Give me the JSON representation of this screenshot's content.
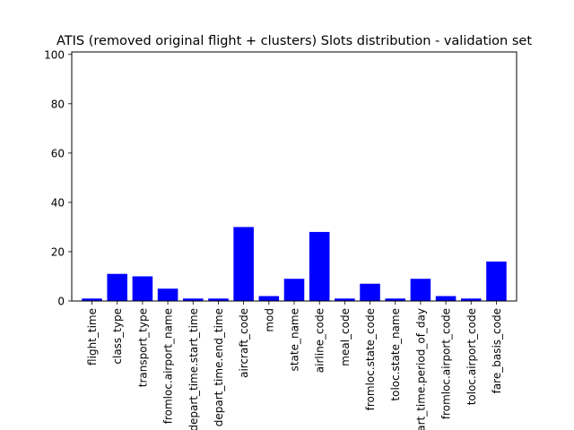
{
  "chart_data": {
    "type": "bar",
    "title": "ATIS (removed original flight + clusters) Slots distribution - validation set",
    "xlabel": "",
    "ylabel": "",
    "categories": [
      "flight_time",
      "class_type",
      "transport_type",
      "fromloc.airport_name",
      "depart_time.start_time",
      "depart_time.end_time",
      "aircraft_code",
      "mod",
      "state_name",
      "airline_code",
      "meal_code",
      "fromloc.state_code",
      "toloc.state_name",
      "depart_time.period_of_day",
      "fromloc.airport_code",
      "toloc.airport_code",
      "fare_basis_code"
    ],
    "values": [
      1,
      11,
      10,
      5,
      1,
      1,
      30,
      2,
      9,
      28,
      1,
      7,
      1,
      9,
      2,
      1,
      16
    ],
    "ylim": [
      0,
      101
    ],
    "yticks": [
      0,
      20,
      40,
      60,
      80,
      100
    ],
    "bar_color": "#0000ff",
    "grid": false,
    "legend": "none"
  }
}
